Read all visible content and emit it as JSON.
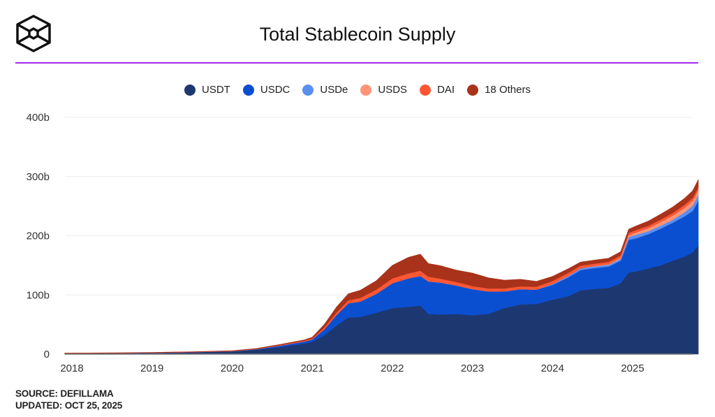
{
  "header": {
    "title": "Total Stablecoin Supply",
    "logo": "cube-logo-icon",
    "accent_color": "#a22bf0"
  },
  "footer": {
    "source": "SOURCE: DEFILLAMA",
    "updated": "UPDATED: OCT 25, 2025"
  },
  "chart_data": {
    "type": "area",
    "stacked": true,
    "title": "Total Stablecoin Supply",
    "xlabel": "",
    "ylabel": "",
    "ylim": [
      0,
      400
    ],
    "y_unit": "billions USD",
    "xlim": [
      2017.91,
      2025.82
    ],
    "yticks": [
      0,
      100,
      200,
      300,
      400
    ],
    "ytick_labels": [
      "0",
      "100b",
      "200b",
      "300b",
      "400b"
    ],
    "xticks": [
      2018,
      2019,
      2020,
      2021,
      2022,
      2023,
      2024,
      2025
    ],
    "xtick_labels": [
      "2018",
      "2019",
      "2020",
      "2021",
      "2022",
      "2023",
      "2024",
      "2025"
    ],
    "grid": "horizontal",
    "legend_position": "top-center",
    "x": [
      2017.91,
      2018.5,
      2019.0,
      2019.5,
      2020.0,
      2020.3,
      2020.6,
      2020.9,
      2021.0,
      2021.15,
      2021.3,
      2021.45,
      2021.6,
      2021.8,
      2022.0,
      2022.2,
      2022.35,
      2022.45,
      2022.6,
      2022.8,
      2023.0,
      2023.2,
      2023.4,
      2023.6,
      2023.8,
      2024.0,
      2024.2,
      2024.35,
      2024.5,
      2024.7,
      2024.85,
      2024.95,
      2025.05,
      2025.2,
      2025.35,
      2025.5,
      2025.65,
      2025.75,
      2025.82
    ],
    "series": [
      {
        "name": "USDT",
        "color": "#1d3870",
        "values": [
          1.2,
          1.5,
          2.0,
          3.0,
          4.5,
          7.5,
          12,
          18,
          21,
          32,
          48,
          62,
          63,
          70,
          78,
          80,
          82,
          68,
          67,
          68,
          66,
          68,
          78,
          84,
          85,
          92,
          98,
          108,
          110,
          112,
          120,
          138,
          140,
          145,
          150,
          158,
          165,
          172,
          184
        ]
      },
      {
        "name": "USDC",
        "color": "#0b4fd1",
        "values": [
          0.0,
          0.1,
          0.3,
          0.4,
          0.5,
          1.0,
          2.5,
          3.5,
          4.0,
          10,
          18,
          24,
          26,
          32,
          42,
          48,
          50,
          55,
          54,
          48,
          44,
          38,
          28,
          26,
          24,
          25,
          32,
          34,
          35,
          36,
          38,
          55,
          56,
          58,
          62,
          64,
          68,
          70,
          75
        ]
      },
      {
        "name": "USDe",
        "color": "#5b8fef",
        "values": [
          0,
          0,
          0,
          0,
          0,
          0,
          0,
          0,
          0,
          0,
          0,
          0,
          0,
          0,
          0,
          0,
          0,
          0,
          0,
          0,
          0,
          0,
          0,
          0,
          0,
          1.5,
          2.5,
          3,
          3,
          3,
          3,
          5,
          6,
          5,
          5,
          5,
          7,
          9,
          10
        ]
      },
      {
        "name": "USDS",
        "color": "#ff9478",
        "values": [
          0,
          0,
          0,
          0,
          0,
          0,
          0,
          0,
          0,
          0,
          0,
          0,
          0,
          0,
          0,
          0,
          0,
          0,
          0,
          0,
          0,
          0,
          0,
          0,
          0,
          0,
          0,
          0,
          0.5,
          1,
          2,
          3,
          4,
          5,
          6,
          7,
          7.5,
          8,
          8
        ]
      },
      {
        "name": "DAI",
        "color": "#fe5733",
        "values": [
          0.1,
          0.1,
          0.1,
          0.1,
          0.2,
          0.3,
          1.0,
          1.2,
          1.5,
          3,
          4,
          5,
          6,
          7,
          8,
          8.5,
          9,
          8,
          6.5,
          6,
          5,
          5,
          5,
          4.5,
          5,
          5,
          5,
          4.5,
          4,
          4,
          4,
          4,
          4,
          4,
          4.5,
          4.5,
          5,
          5,
          5
        ]
      },
      {
        "name": "18 Others",
        "color": "#a8331a",
        "values": [
          0.6,
          0.6,
          0.6,
          0.6,
          0.6,
          0.7,
          1.0,
          1.5,
          2,
          5,
          9,
          11,
          13,
          15,
          22,
          27,
          28,
          22,
          22,
          20,
          22,
          18,
          14,
          12,
          9,
          8,
          7,
          6,
          6,
          6,
          6,
          6,
          7,
          8,
          9,
          10,
          11,
          12,
          13
        ]
      }
    ]
  }
}
